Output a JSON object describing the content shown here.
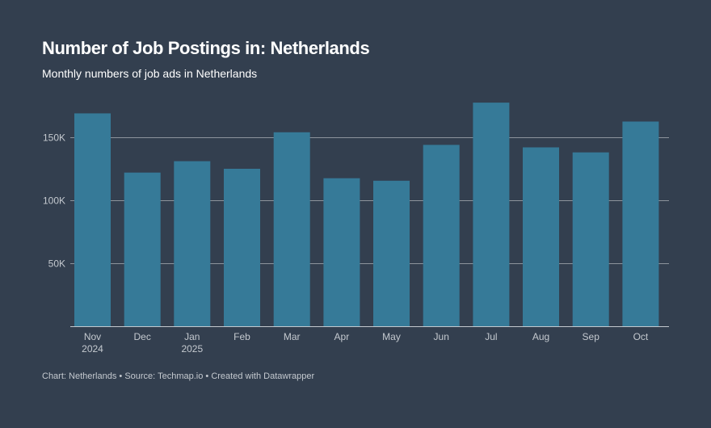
{
  "chart_data": {
    "type": "bar",
    "title": "Number of Job Postings in: Netherlands",
    "subtitle": "Monthly numbers of job ads in Netherlands",
    "categories": [
      "Nov",
      "Dec",
      "Jan",
      "Feb",
      "Mar",
      "Apr",
      "May",
      "Jun",
      "Jul",
      "Aug",
      "Sep",
      "Oct"
    ],
    "category_sublabels": [
      "2024",
      "",
      "2025",
      "",
      "",
      "",
      "",
      "",
      "",
      "",
      "",
      ""
    ],
    "values": [
      169000,
      122000,
      131000,
      125000,
      154000,
      117500,
      115500,
      144000,
      177500,
      142000,
      138000,
      162500
    ],
    "yticks": [
      50000,
      100000,
      150000
    ],
    "ytick_labels": [
      "50K",
      "100K",
      "150K"
    ],
    "ylim": [
      0,
      180000
    ],
    "grid": true,
    "xlabel": "",
    "ylabel": "",
    "bar_color": "#367a98",
    "grid_color": "#8d949c",
    "axis_color": "#c4c9cf"
  },
  "footer": {
    "chart_label": "Chart: Netherlands",
    "source": "Source: Techmap.io",
    "credit": "Created with Datawrapper",
    "separator": "•"
  }
}
